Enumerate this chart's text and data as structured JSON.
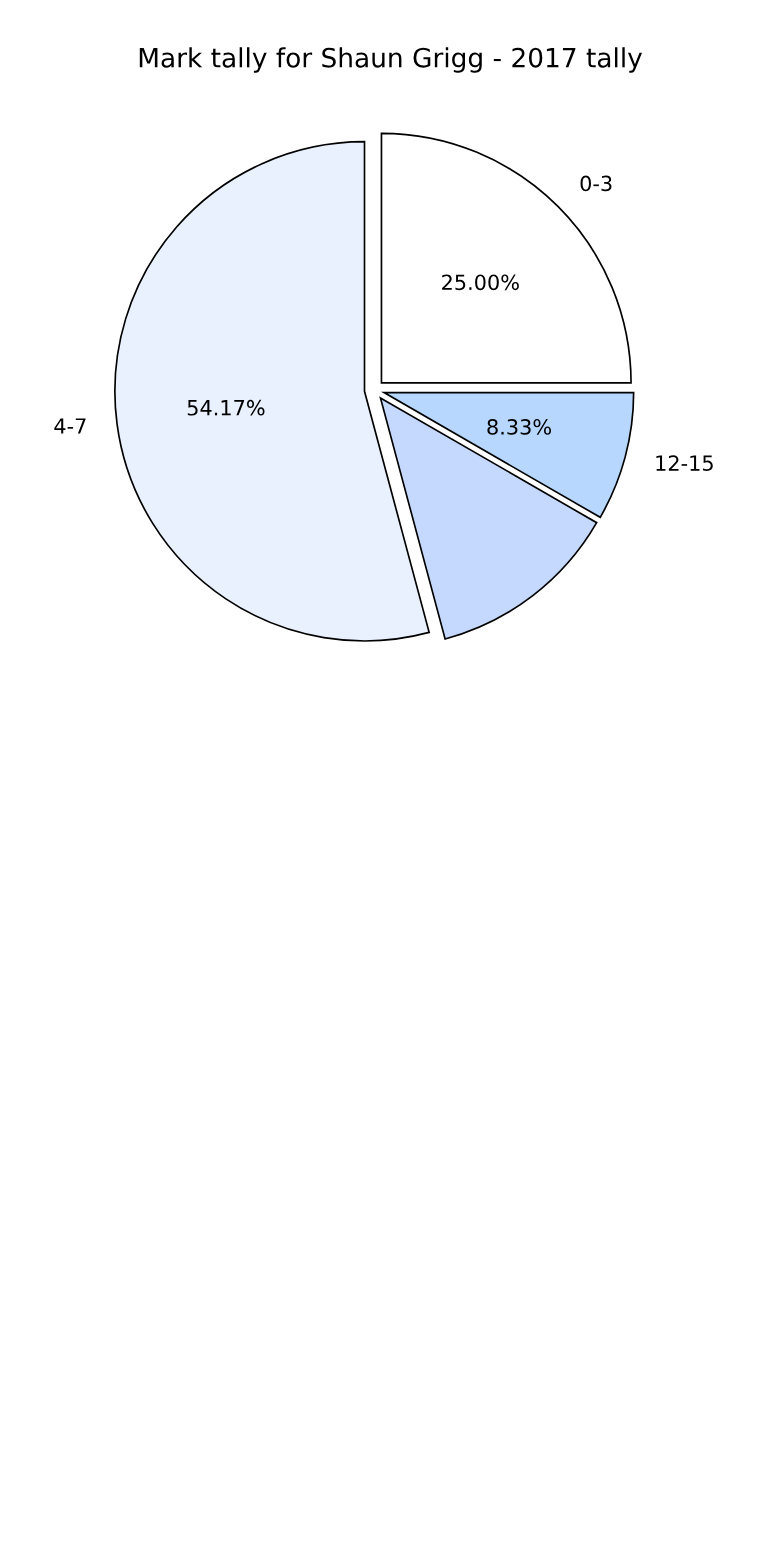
{
  "chart_data": {
    "type": "pie",
    "title": "Mark tally for Shaun Grigg - 2017 tally",
    "categories": [
      "0-3",
      "12-15",
      null,
      "4-7"
    ],
    "values": [
      25.0,
      8.33,
      12.5,
      54.17
    ],
    "colors": [
      "#ffffff",
      "#b7d7fe",
      "#c5d8fd",
      "#eaf1fe"
    ],
    "value_labels": [
      "25.00%",
      "8.33%",
      null,
      "54.17%"
    ]
  }
}
